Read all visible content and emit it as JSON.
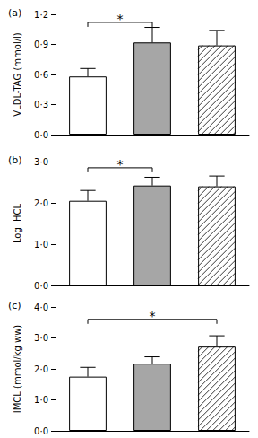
{
  "chart_data": [
    {
      "type": "bar",
      "title": "(a)",
      "y_label": "VLDL-TAG (mmol/l)",
      "categories": [
        null,
        null,
        null
      ],
      "values": [
        0.58,
        0.92,
        0.89
      ],
      "errors": [
        0.08,
        0.15,
        0.15
      ],
      "colors": [
        "#ffffff",
        "#a6a6a6",
        "#ffffff"
      ],
      "ylim": [
        0,
        1.2
      ],
      "yticks": [
        {
          "value": 0,
          "label": "0·0"
        },
        {
          "value": 0.3,
          "label": "0·3"
        },
        {
          "value": 0.6,
          "label": "0·6"
        },
        {
          "value": 0.9,
          "label": "0·9"
        },
        {
          "value": 1.2,
          "label": "1·2"
        }
      ],
      "grid": false,
      "annotations": [
        {
          "text": "*",
          "from": 0,
          "to": 1,
          "y": 1.12
        }
      ]
    },
    {
      "type": "bar",
      "title": "(b)",
      "y_label": "Log IHCL",
      "categories": [
        null,
        null,
        null
      ],
      "values": [
        2.05,
        2.42,
        2.4
      ],
      "errors": [
        0.25,
        0.2,
        0.25
      ],
      "colors": [
        "#ffffff",
        "#a6a6a6",
        "#ffffff"
      ],
      "ylim": [
        0,
        3
      ],
      "yticks": [
        {
          "value": 0,
          "label": "0·0"
        },
        {
          "value": 1,
          "label": "1·0"
        },
        {
          "value": 2,
          "label": "2·0"
        },
        {
          "value": 3,
          "label": "3·0"
        }
      ],
      "grid": false,
      "annotations": [
        {
          "text": "*",
          "from": 0,
          "to": 1,
          "y": 2.85
        }
      ]
    },
    {
      "type": "bar",
      "title": "(c)",
      "y_label": "IMCL (mmol/kg ww)",
      "categories": [
        null,
        null,
        null
      ],
      "values": [
        1.75,
        2.17,
        2.72
      ],
      "errors": [
        0.3,
        0.22,
        0.35
      ],
      "colors": [
        "#ffffff",
        "#a6a6a6",
        "#ffffff"
      ],
      "ylim": [
        0,
        4
      ],
      "yticks": [
        {
          "value": 0,
          "label": "0·0"
        },
        {
          "value": 1,
          "label": "1·0"
        },
        {
          "value": 2,
          "label": "2·0"
        },
        {
          "value": 3,
          "label": "3·0"
        },
        {
          "value": 4,
          "label": "4·0"
        }
      ],
      "grid": false,
      "annotations": [
        {
          "text": "*",
          "from": 0,
          "to": 2,
          "y": 3.6
        }
      ]
    }
  ]
}
